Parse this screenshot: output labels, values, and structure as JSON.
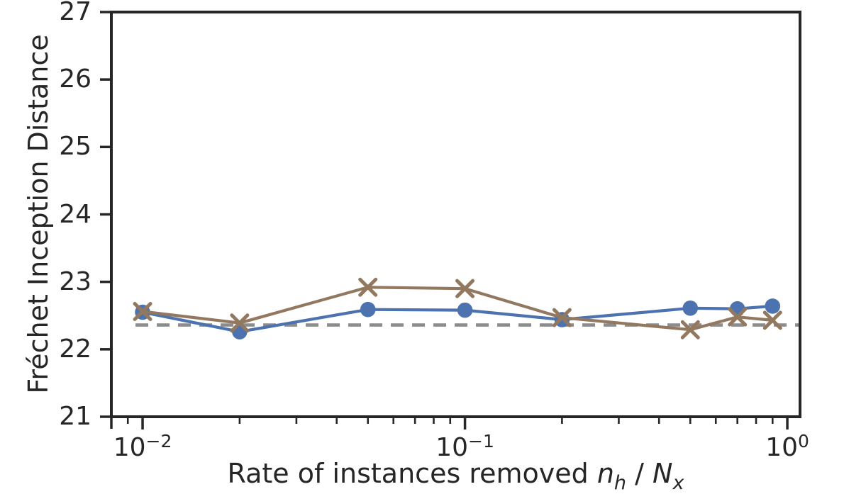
{
  "figure": {
    "background": "#ffffff"
  },
  "chart_data": {
    "type": "line",
    "x_scale": "log",
    "grid": false,
    "legend_position": "none",
    "xlabel": {
      "prefix": "Rate of instances removed ",
      "var1": "n",
      "var1_sub": "h",
      "sep": " / ",
      "var2": "N",
      "var2_sub": "x"
    },
    "ylabel": "Fréchet Inception Distance",
    "xlim": [
      0.008,
      1.095
    ],
    "ylim": [
      21,
      27
    ],
    "yticks": [
      27,
      26,
      25,
      24,
      23,
      22,
      21
    ],
    "xticks": [
      {
        "base": "10",
        "exp": "−2",
        "value": 0.01
      },
      {
        "base": "10",
        "exp": "−1",
        "value": 0.1
      },
      {
        "base": "10",
        "exp": "0",
        "value": 1
      }
    ],
    "x_minor_ticks": [
      0.009,
      0.02,
      0.03,
      0.04,
      0.05,
      0.06,
      0.07,
      0.08,
      0.09,
      0.2,
      0.3,
      0.4,
      0.5,
      0.6,
      0.7,
      0.8,
      0.9
    ],
    "axis_color": "#262626",
    "x": [
      0.01,
      0.02,
      0.05,
      0.1,
      0.2,
      0.5,
      0.7,
      0.9
    ],
    "series": [
      {
        "id": "blue-circles",
        "marker": "circle",
        "color": "#4C72B0",
        "values": [
          22.55,
          22.26,
          22.59,
          22.58,
          22.44,
          22.61,
          22.6,
          22.64
        ]
      },
      {
        "id": "brown-crosses",
        "marker": "x",
        "color": "#937860",
        "values": [
          22.56,
          22.39,
          22.92,
          22.9,
          22.47,
          22.29,
          22.48,
          22.43
        ]
      }
    ],
    "baseline": {
      "value": 22.36,
      "color": "#8C8C8C",
      "style": "dashed"
    }
  }
}
